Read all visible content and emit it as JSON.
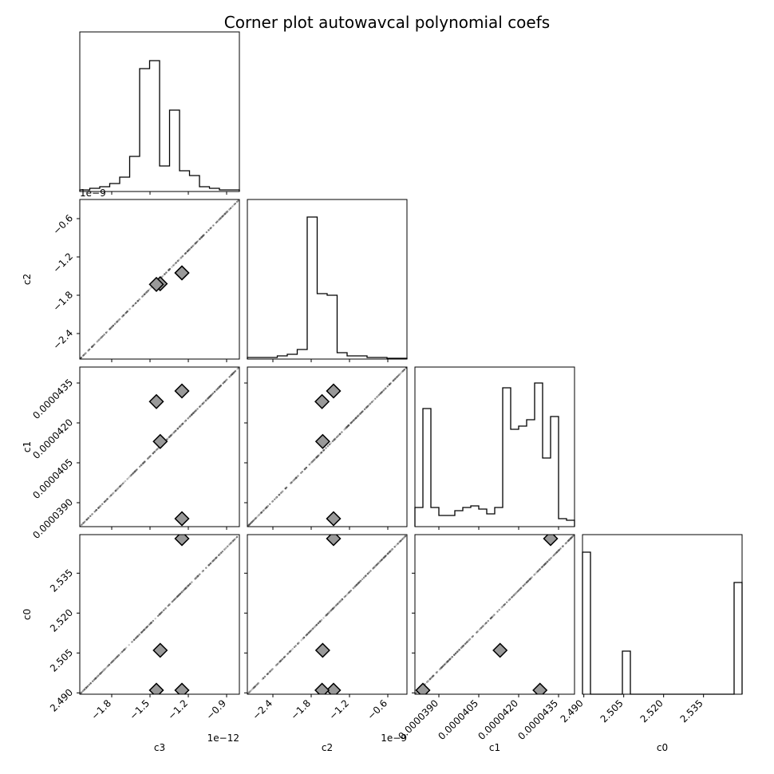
{
  "title": "Corner plot autowavcal polynomial coefs",
  "chart_data": {
    "type": "scatter",
    "title": "Corner plot autowavcal polynomial coefs",
    "parameters": [
      {
        "name": "c3",
        "label": "c3",
        "offset_text": "1e−12",
        "range": [
          -2.05,
          -0.8
        ],
        "ticks": [
          -1.8,
          -1.5,
          -1.2,
          -0.9
        ],
        "tick_labels": [
          "−1.8",
          "−1.5",
          "−1.2",
          "−0.9"
        ],
        "hist_density": [
          0.01,
          0.02,
          0.03,
          0.05,
          0.09,
          0.22,
          0.77,
          0.82,
          0.16,
          0.51,
          0.13,
          0.1,
          0.03,
          0.02,
          0.01,
          0.01
        ]
      },
      {
        "name": "c2",
        "label": "c2",
        "offset_text": "1e−9",
        "range": [
          -2.8,
          -0.3
        ],
        "ticks": [
          -2.4,
          -1.8,
          -1.2,
          -0.6
        ],
        "tick_labels": [
          "−2.4",
          "−1.8",
          "−1.2",
          "−0.6"
        ],
        "hist_density": [
          0.01,
          0.01,
          0.01,
          0.02,
          0.03,
          0.06,
          0.89,
          0.41,
          0.4,
          0.04,
          0.02,
          0.02,
          0.01,
          0.01,
          0.005,
          0.005
        ]
      },
      {
        "name": "c1",
        "label": "c1",
        "range": [
          3.81e-05,
          4.41e-05
        ],
        "ticks": [
          3.9e-05,
          4.05e-05,
          4.2e-05,
          4.35e-05
        ],
        "tick_labels": [
          "0.0000390",
          "0.0000405",
          "0.0000420",
          "0.0000435"
        ],
        "hist_density": [
          0.12,
          0.74,
          0.12,
          0.07,
          0.07,
          0.1,
          0.12,
          0.13,
          0.11,
          0.08,
          0.12,
          0.87,
          0.61,
          0.63,
          0.67,
          0.9,
          0.43,
          0.69,
          0.05,
          0.04
        ]
      },
      {
        "name": "c0",
        "label": "c0",
        "range": [
          2.4895,
          2.5495
        ],
        "ticks": [
          2.49,
          2.505,
          2.52,
          2.535
        ],
        "tick_labels": [
          "2.490",
          "2.505",
          "2.520",
          "2.535"
        ],
        "hist_density": [
          0.89,
          0.0,
          0.0,
          0.0,
          0.0,
          0.27,
          0.0,
          0.0,
          0.0,
          0.0,
          0.0,
          0.0,
          0.0,
          0.0,
          0.0,
          0.0,
          0.0,
          0.0,
          0.0,
          0.7
        ]
      }
    ],
    "markers": [
      {
        "c3": -1.25,
        "c2": -1.45,
        "c1": 4.32e-05,
        "c0": 2.548
      },
      {
        "c3": -1.42,
        "c2": -1.62,
        "c1": 4.13e-05,
        "c0": 2.506
      },
      {
        "c3": -1.25,
        "c2": -1.45,
        "c1": 3.84e-05,
        "c0": 2.491
      },
      {
        "c3": -1.45,
        "c2": -1.63,
        "c1": 4.28e-05,
        "c0": 2.491
      }
    ],
    "grid": false,
    "legend": "none"
  }
}
